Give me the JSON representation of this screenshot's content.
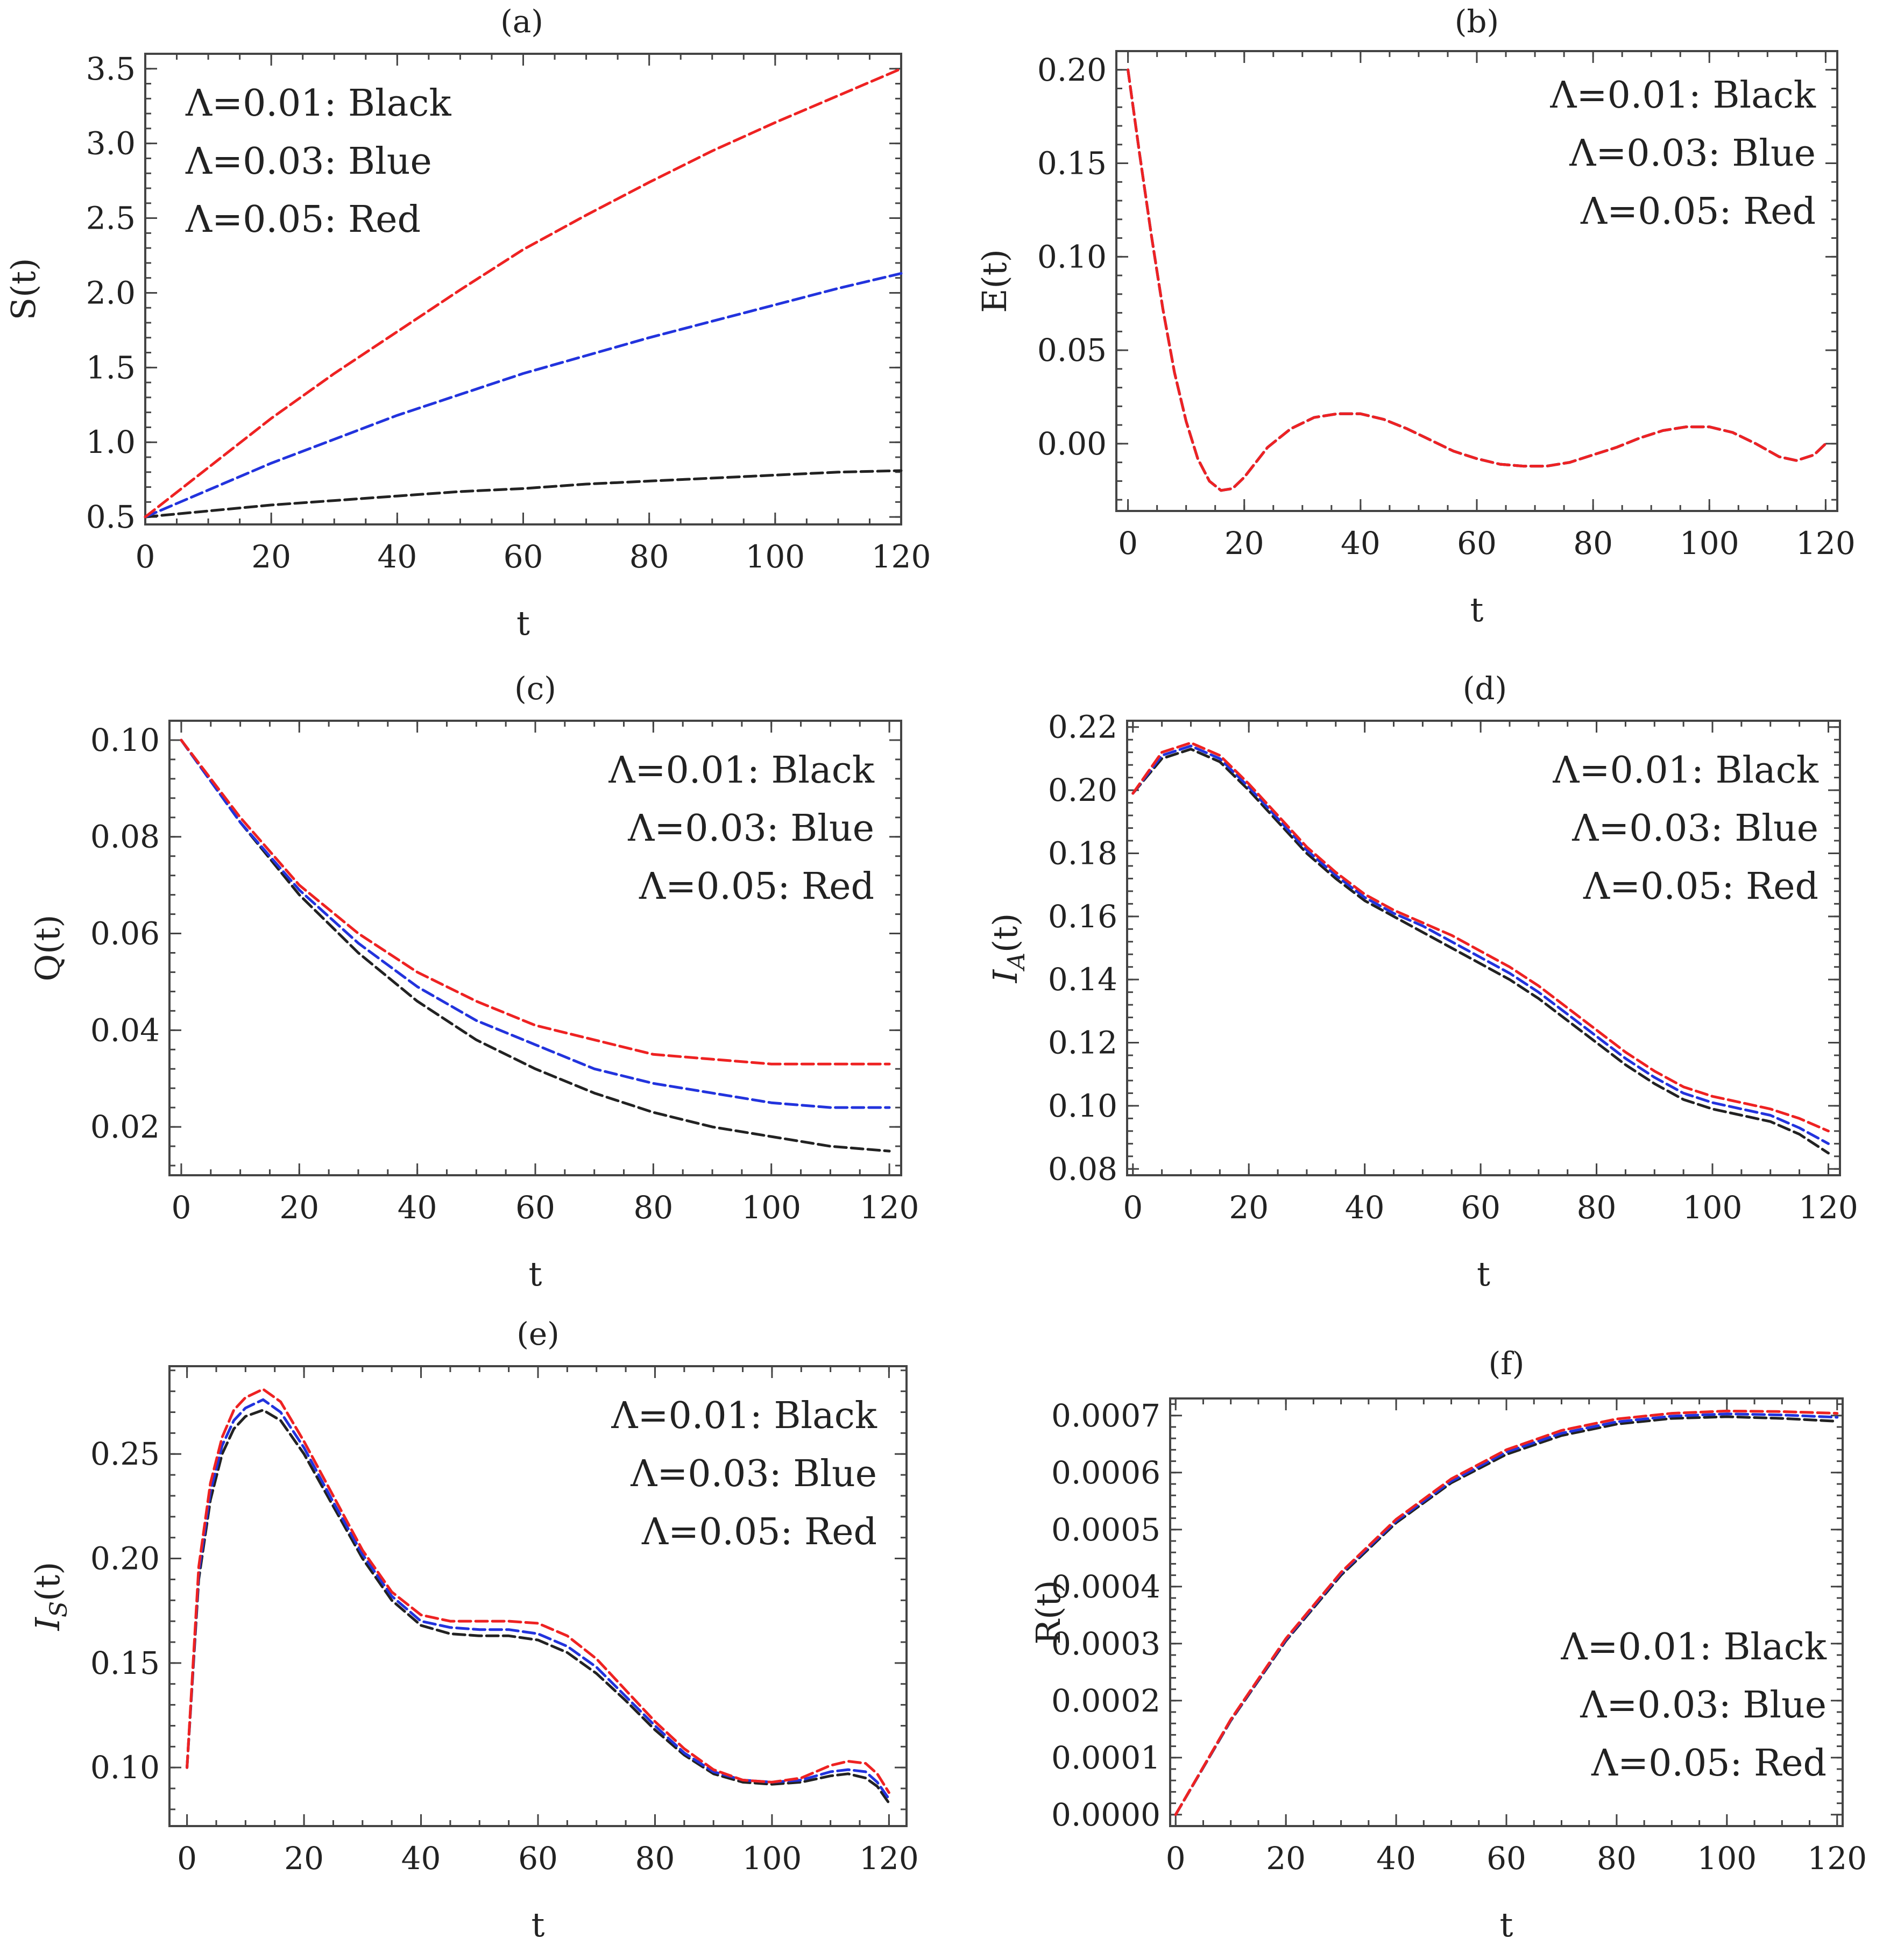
{
  "figure": {
    "layout": "3 rows x 2 columns"
  },
  "chart_data": [
    {
      "type": "line",
      "title": "(a)",
      "xlabel": "t",
      "ylabel": "S(t)",
      "ylabel_sub": "",
      "xlim": [
        0,
        120
      ],
      "ylim": [
        0.45,
        3.6
      ],
      "xticks": [
        0,
        20,
        40,
        60,
        80,
        100,
        120
      ],
      "xtick_labels": [
        "0",
        "20",
        "40",
        "60",
        "80",
        "100",
        "120"
      ],
      "yticks": [
        0.5,
        1.0,
        1.5,
        2.0,
        2.5,
        3.0,
        3.5
      ],
      "ytick_labels": [
        "0.5",
        "1.0",
        "1.5",
        "2.0",
        "2.5",
        "3.0",
        "3.5"
      ],
      "legend_position": "top-left",
      "legend": [
        "Λ=0.01:  Black",
        "Λ=0.03:  Blue",
        "Λ=0.05:  Red"
      ],
      "x": [
        0,
        10,
        20,
        30,
        40,
        50,
        60,
        70,
        80,
        90,
        100,
        110,
        120
      ],
      "series": [
        {
          "name": "Λ=0.01",
          "color": "#222222",
          "values": [
            0.5,
            0.54,
            0.58,
            0.61,
            0.64,
            0.67,
            0.69,
            0.72,
            0.74,
            0.76,
            0.78,
            0.8,
            0.81
          ]
        },
        {
          "name": "Λ=0.03",
          "color": "#2233dd",
          "values": [
            0.5,
            0.68,
            0.86,
            1.02,
            1.18,
            1.32,
            1.46,
            1.58,
            1.7,
            1.81,
            1.92,
            2.03,
            2.13
          ]
        },
        {
          "name": "Λ=0.05",
          "color": "#ee2222",
          "values": [
            0.5,
            0.83,
            1.16,
            1.46,
            1.74,
            2.02,
            2.29,
            2.52,
            2.74,
            2.95,
            3.14,
            3.32,
            3.5
          ]
        }
      ]
    },
    {
      "type": "line",
      "title": "(b)",
      "xlabel": "t",
      "ylabel": "E(t)",
      "ylabel_sub": "",
      "xlim": [
        -2,
        122
      ],
      "ylim": [
        -0.036,
        0.21
      ],
      "xticks": [
        0,
        20,
        40,
        60,
        80,
        100,
        120
      ],
      "xtick_labels": [
        "0",
        "20",
        "40",
        "60",
        "80",
        "100",
        "120"
      ],
      "yticks": [
        0.0,
        0.05,
        0.1,
        0.15,
        0.2
      ],
      "ytick_labels": [
        "0.00",
        "0.05",
        "0.10",
        "0.15",
        "0.20"
      ],
      "legend_position": "top-right",
      "legend": [
        "Λ=0.01:  Black",
        "Λ=0.03:  Blue",
        "Λ=0.05:  Red"
      ],
      "x": [
        0,
        2,
        4,
        6,
        8,
        10,
        12,
        14,
        16,
        18,
        20,
        24,
        28,
        32,
        36,
        40,
        44,
        48,
        52,
        56,
        60,
        64,
        68,
        72,
        76,
        80,
        84,
        88,
        92,
        96,
        100,
        104,
        108,
        112,
        115,
        118,
        120
      ],
      "series": [
        {
          "name": "Λ=0.01",
          "color": "#222222",
          "values": [
            0.2,
            0.155,
            0.112,
            0.072,
            0.038,
            0.012,
            -0.008,
            -0.02,
            -0.025,
            -0.024,
            -0.018,
            -0.002,
            0.008,
            0.014,
            0.016,
            0.016,
            0.013,
            0.008,
            0.002,
            -0.004,
            -0.008,
            -0.011,
            -0.012,
            -0.012,
            -0.01,
            -0.006,
            -0.002,
            0.003,
            0.007,
            0.009,
            0.009,
            0.006,
            0.0,
            -0.007,
            -0.009,
            -0.006,
            0.0
          ]
        },
        {
          "name": "Λ=0.03",
          "color": "#2233dd",
          "values": [
            0.2,
            0.155,
            0.112,
            0.072,
            0.038,
            0.012,
            -0.008,
            -0.02,
            -0.025,
            -0.024,
            -0.018,
            -0.002,
            0.008,
            0.014,
            0.016,
            0.016,
            0.013,
            0.008,
            0.002,
            -0.004,
            -0.008,
            -0.011,
            -0.012,
            -0.012,
            -0.01,
            -0.006,
            -0.002,
            0.003,
            0.007,
            0.009,
            0.009,
            0.006,
            0.0,
            -0.007,
            -0.009,
            -0.006,
            0.0
          ]
        },
        {
          "name": "Λ=0.05",
          "color": "#ee2222",
          "values": [
            0.2,
            0.155,
            0.112,
            0.072,
            0.038,
            0.012,
            -0.008,
            -0.02,
            -0.025,
            -0.024,
            -0.018,
            -0.002,
            0.008,
            0.014,
            0.016,
            0.016,
            0.013,
            0.008,
            0.002,
            -0.004,
            -0.008,
            -0.011,
            -0.012,
            -0.012,
            -0.01,
            -0.006,
            -0.002,
            0.003,
            0.007,
            0.009,
            0.009,
            0.006,
            0.0,
            -0.007,
            -0.009,
            -0.006,
            0.0
          ]
        }
      ]
    },
    {
      "type": "line",
      "title": "(c)",
      "xlabel": "t",
      "ylabel": "Q(t)",
      "ylabel_sub": "",
      "xlim": [
        -2,
        122
      ],
      "ylim": [
        0.01,
        0.104
      ],
      "xticks": [
        0,
        20,
        40,
        60,
        80,
        100,
        120
      ],
      "xtick_labels": [
        "0",
        "20",
        "40",
        "60",
        "80",
        "100",
        "120"
      ],
      "yticks": [
        0.02,
        0.04,
        0.06,
        0.08,
        0.1
      ],
      "ytick_labels": [
        "0.02",
        "0.04",
        "0.06",
        "0.08",
        "0.10"
      ],
      "legend_position": "top-right",
      "legend": [
        "Λ=0.01:  Black",
        "Λ=0.03:  Blue",
        "Λ=0.05:  Red"
      ],
      "x": [
        0,
        10,
        20,
        30,
        40,
        50,
        60,
        70,
        80,
        90,
        100,
        110,
        120
      ],
      "series": [
        {
          "name": "Λ=0.01",
          "color": "#222222",
          "values": [
            0.1,
            0.083,
            0.068,
            0.056,
            0.046,
            0.038,
            0.032,
            0.027,
            0.023,
            0.02,
            0.018,
            0.016,
            0.015
          ]
        },
        {
          "name": "Λ=0.03",
          "color": "#2233dd",
          "values": [
            0.1,
            0.083,
            0.069,
            0.058,
            0.049,
            0.042,
            0.037,
            0.032,
            0.029,
            0.027,
            0.025,
            0.024,
            0.024
          ]
        },
        {
          "name": "Λ=0.05",
          "color": "#ee2222",
          "values": [
            0.1,
            0.084,
            0.07,
            0.06,
            0.052,
            0.046,
            0.041,
            0.038,
            0.035,
            0.034,
            0.033,
            0.033,
            0.033
          ]
        }
      ]
    },
    {
      "type": "line",
      "title": "(d)",
      "xlabel": "t",
      "ylabel": "I",
      "ylabel_sub": "A",
      "ylabel_tail": "(t)",
      "xlim": [
        -1,
        122
      ],
      "ylim": [
        0.078,
        0.222
      ],
      "xticks": [
        0,
        20,
        40,
        60,
        80,
        100,
        120
      ],
      "xtick_labels": [
        "0",
        "20",
        "40",
        "60",
        "80",
        "100",
        "120"
      ],
      "yticks": [
        0.08,
        0.1,
        0.12,
        0.14,
        0.16,
        0.18,
        0.2,
        0.22
      ],
      "ytick_labels": [
        "0.08",
        "0.10",
        "0.12",
        "0.14",
        "0.16",
        "0.18",
        "0.20",
        "0.22"
      ],
      "legend_position": "top-right",
      "legend": [
        "Λ=0.01:  Black",
        "Λ=0.03:  Blue",
        "Λ=0.05:  Red"
      ],
      "x": [
        0,
        5,
        10,
        15,
        20,
        25,
        30,
        35,
        40,
        45,
        50,
        55,
        60,
        65,
        70,
        75,
        80,
        85,
        90,
        95,
        100,
        105,
        110,
        115,
        120
      ],
      "series": [
        {
          "name": "Λ=0.01",
          "color": "#222222",
          "values": [
            0.199,
            0.21,
            0.213,
            0.209,
            0.2,
            0.19,
            0.18,
            0.172,
            0.165,
            0.16,
            0.155,
            0.15,
            0.145,
            0.14,
            0.134,
            0.127,
            0.12,
            0.113,
            0.107,
            0.102,
            0.099,
            0.097,
            0.095,
            0.091,
            0.085
          ]
        },
        {
          "name": "Λ=0.03",
          "color": "#2233dd",
          "values": [
            0.199,
            0.211,
            0.214,
            0.21,
            0.201,
            0.191,
            0.181,
            0.173,
            0.166,
            0.161,
            0.157,
            0.152,
            0.147,
            0.142,
            0.136,
            0.129,
            0.122,
            0.115,
            0.109,
            0.104,
            0.101,
            0.099,
            0.097,
            0.093,
            0.088
          ]
        },
        {
          "name": "Λ=0.05",
          "color": "#ee2222",
          "values": [
            0.199,
            0.212,
            0.215,
            0.211,
            0.202,
            0.192,
            0.182,
            0.174,
            0.167,
            0.162,
            0.158,
            0.154,
            0.149,
            0.144,
            0.138,
            0.131,
            0.124,
            0.117,
            0.111,
            0.106,
            0.103,
            0.101,
            0.099,
            0.096,
            0.092
          ]
        }
      ]
    },
    {
      "type": "line",
      "title": "(e)",
      "xlabel": "t",
      "ylabel": "I",
      "ylabel_sub": "S",
      "ylabel_tail": "(t)",
      "xlim": [
        -3,
        123
      ],
      "ylim": [
        0.072,
        0.292
      ],
      "xticks": [
        0,
        20,
        40,
        60,
        80,
        100,
        120
      ],
      "xtick_labels": [
        "0",
        "20",
        "40",
        "60",
        "80",
        "100",
        "120"
      ],
      "yticks": [
        0.1,
        0.15,
        0.2,
        0.25
      ],
      "ytick_labels": [
        "0.10",
        "0.15",
        "0.20",
        "0.25"
      ],
      "legend_position": "top-right",
      "legend": [
        "Λ=0.01:  Black",
        "Λ=0.03:  Blue",
        "Λ=0.05:  Red"
      ],
      "x": [
        0,
        2,
        4,
        6,
        8,
        10,
        13,
        16,
        20,
        25,
        30,
        35,
        40,
        45,
        50,
        55,
        60,
        65,
        70,
        75,
        80,
        85,
        90,
        95,
        100,
        105,
        110,
        113,
        116,
        118,
        120
      ],
      "series": [
        {
          "name": "Λ=0.01",
          "color": "#222222",
          "values": [
            0.1,
            0.19,
            0.228,
            0.25,
            0.262,
            0.268,
            0.271,
            0.266,
            0.25,
            0.225,
            0.2,
            0.18,
            0.168,
            0.164,
            0.163,
            0.163,
            0.161,
            0.155,
            0.145,
            0.132,
            0.118,
            0.106,
            0.097,
            0.093,
            0.092,
            0.093,
            0.096,
            0.097,
            0.095,
            0.091,
            0.083
          ]
        },
        {
          "name": "Λ=0.03",
          "color": "#2233dd",
          "values": [
            0.1,
            0.193,
            0.232,
            0.254,
            0.266,
            0.272,
            0.276,
            0.27,
            0.253,
            0.227,
            0.202,
            0.182,
            0.17,
            0.167,
            0.166,
            0.166,
            0.164,
            0.158,
            0.148,
            0.134,
            0.12,
            0.107,
            0.098,
            0.094,
            0.093,
            0.094,
            0.098,
            0.099,
            0.098,
            0.093,
            0.085
          ]
        },
        {
          "name": "Λ=0.05",
          "color": "#ee2222",
          "values": [
            0.1,
            0.196,
            0.236,
            0.258,
            0.271,
            0.277,
            0.281,
            0.275,
            0.256,
            0.23,
            0.204,
            0.184,
            0.173,
            0.17,
            0.17,
            0.17,
            0.169,
            0.163,
            0.152,
            0.137,
            0.122,
            0.109,
            0.099,
            0.094,
            0.093,
            0.095,
            0.101,
            0.103,
            0.102,
            0.097,
            0.088
          ]
        }
      ]
    },
    {
      "type": "line",
      "title": "(f)",
      "xlabel": "t",
      "ylabel": "R(t)",
      "ylabel_sub": "",
      "xlim": [
        -1,
        121
      ],
      "ylim": [
        -2e-05,
        0.00073
      ],
      "xticks": [
        0,
        20,
        40,
        60,
        80,
        100,
        120
      ],
      "xtick_labels": [
        "0",
        "20",
        "40",
        "60",
        "80",
        "100",
        "120"
      ],
      "yticks": [
        0.0,
        0.0001,
        0.0002,
        0.0003,
        0.0004,
        0.0005,
        0.0006,
        0.0007
      ],
      "ytick_labels": [
        "0.0000",
        "0.0001",
        "0.0002",
        "0.0003",
        "0.0004",
        "0.0005",
        "0.0006",
        "0.0007"
      ],
      "legend_position": "bottom-right",
      "legend": [
        "Λ=0.01:  Black",
        "Λ=0.03:  Blue",
        "Λ=0.05:  Red"
      ],
      "x": [
        0,
        10,
        20,
        30,
        40,
        50,
        60,
        70,
        80,
        90,
        100,
        110,
        120
      ],
      "series": [
        {
          "name": "Λ=0.01",
          "color": "#222222",
          "values": [
            0.0,
            0.000165,
            0.000305,
            0.00042,
            0.000512,
            0.000582,
            0.000632,
            0.000665,
            0.000685,
            0.000695,
            0.000698,
            0.000695,
            0.00069
          ]
        },
        {
          "name": "Λ=0.03",
          "color": "#2233dd",
          "values": [
            0.0,
            0.000166,
            0.000307,
            0.000423,
            0.000515,
            0.000585,
            0.000636,
            0.000669,
            0.000689,
            0.000699,
            0.000703,
            0.000701,
            0.000697
          ]
        },
        {
          "name": "Λ=0.05",
          "color": "#ee2222",
          "values": [
            0.0,
            0.000167,
            0.000309,
            0.000425,
            0.000518,
            0.000589,
            0.00064,
            0.000674,
            0.000694,
            0.000704,
            0.000708,
            0.000707,
            0.000704
          ]
        }
      ]
    }
  ]
}
